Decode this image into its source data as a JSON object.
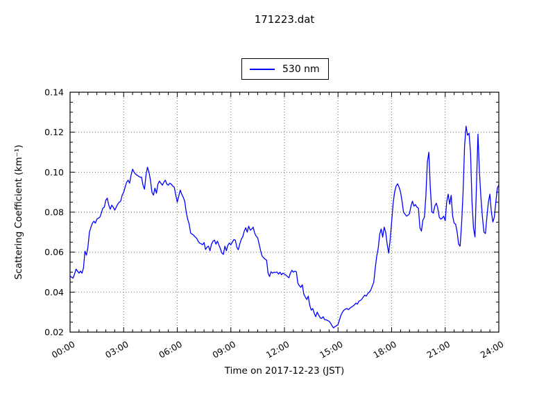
{
  "figure": {
    "title": "171223.dat",
    "legend": {
      "label": "530 nm",
      "line_color": "#0000ff"
    },
    "x_axis": {
      "label": "Time on 2017-12-23 (JST)",
      "ticks": [
        {
          "hour": 0,
          "label": "00:00"
        },
        {
          "hour": 3,
          "label": "03:00"
        },
        {
          "hour": 6,
          "label": "06:00"
        },
        {
          "hour": 9,
          "label": "09:00"
        },
        {
          "hour": 12,
          "label": "12:00"
        },
        {
          "hour": 15,
          "label": "15:00"
        },
        {
          "hour": 18,
          "label": "18:00"
        },
        {
          "hour": 21,
          "label": "21:00"
        },
        {
          "hour": 24,
          "label": "24:00"
        }
      ],
      "minor_step_hours": 0.5,
      "tick_label_rotation_deg": -30
    },
    "y_axis": {
      "label": "Scattering Coefficient (km⁻¹)",
      "ticks": [
        {
          "value": 0.02,
          "label": "0.02"
        },
        {
          "value": 0.04,
          "label": "0.04"
        },
        {
          "value": 0.06,
          "label": "0.06"
        },
        {
          "value": 0.08,
          "label": "0.08"
        },
        {
          "value": 0.1,
          "label": "0.10"
        },
        {
          "value": 0.12,
          "label": "0.12"
        },
        {
          "value": 0.14,
          "label": "0.14"
        }
      ],
      "minor_step": 0.005
    },
    "colors": {
      "line": "#0000ff",
      "grid": "#555555",
      "frame": "#000000",
      "background": "#ffffff"
    }
  },
  "chart_data": {
    "type": "line",
    "title": "171223.dat",
    "xlabel": "Time on 2017-12-23 (JST)",
    "ylabel": "Scattering Coefficient (km⁻¹)",
    "xlim": [
      0,
      24
    ],
    "ylim": [
      0.02,
      0.14
    ],
    "grid": true,
    "grid_style": "dotted",
    "legend_position": "upper center, above axes",
    "series": [
      {
        "name": "530 nm",
        "color": "#0000ff",
        "x_start_hour": 0,
        "x_step_minutes": 5,
        "values": [
          0.048,
          0.0475,
          0.047,
          0.049,
          0.0515,
          0.0505,
          0.0495,
          0.0505,
          0.0495,
          0.052,
          0.0605,
          0.0585,
          0.0625,
          0.07,
          0.0725,
          0.0745,
          0.0755,
          0.0745,
          0.0765,
          0.077,
          0.0775,
          0.0795,
          0.082,
          0.0825,
          0.086,
          0.087,
          0.0835,
          0.0815,
          0.0835,
          0.0825,
          0.081,
          0.0825,
          0.084,
          0.085,
          0.0855,
          0.0885,
          0.09,
          0.0925,
          0.095,
          0.096,
          0.0945,
          0.0985,
          0.1015,
          0.1,
          0.099,
          0.0985,
          0.098,
          0.0975,
          0.0975,
          0.0935,
          0.0915,
          0.0985,
          0.1025,
          0.1,
          0.096,
          0.09,
          0.0885,
          0.092,
          0.0895,
          0.094,
          0.0955,
          0.0945,
          0.0935,
          0.095,
          0.096,
          0.094,
          0.0935,
          0.0945,
          0.094,
          0.093,
          0.0925,
          0.0885,
          0.085,
          0.088,
          0.091,
          0.089,
          0.0875,
          0.0855,
          0.08,
          0.0765,
          0.074,
          0.0695,
          0.069,
          0.0685,
          0.0676,
          0.067,
          0.0655,
          0.0645,
          0.0642,
          0.0637,
          0.0648,
          0.0613,
          0.0625,
          0.063,
          0.0607,
          0.064,
          0.0655,
          0.066,
          0.064,
          0.0655,
          0.0635,
          0.0617,
          0.0595,
          0.0589,
          0.063,
          0.0607,
          0.0635,
          0.0645,
          0.0637,
          0.065,
          0.0663,
          0.066,
          0.0625,
          0.0612,
          0.064,
          0.0665,
          0.0677,
          0.0705,
          0.0722,
          0.07,
          0.073,
          0.071,
          0.0715,
          0.0725,
          0.0695,
          0.068,
          0.0672,
          0.064,
          0.0607,
          0.058,
          0.0572,
          0.0565,
          0.056,
          0.0495,
          0.0478,
          0.0502,
          0.0495,
          0.05,
          0.0498,
          0.0501,
          0.049,
          0.05,
          0.0487,
          0.0495,
          0.049,
          0.0485,
          0.0478,
          0.0472,
          0.0495,
          0.0509,
          0.05,
          0.0505,
          0.0502,
          0.0445,
          0.0432,
          0.0424,
          0.0437,
          0.039,
          0.0376,
          0.0363,
          0.038,
          0.0334,
          0.031,
          0.0318,
          0.0295,
          0.0277,
          0.03,
          0.0285,
          0.0272,
          0.0268,
          0.0277,
          0.0262,
          0.0262,
          0.0258,
          0.0254,
          0.0245,
          0.0231,
          0.0221,
          0.0228,
          0.0232,
          0.0238,
          0.0262,
          0.0285,
          0.03,
          0.031,
          0.0315,
          0.0318,
          0.0312,
          0.032,
          0.0325,
          0.033,
          0.0336,
          0.0345,
          0.034,
          0.0355,
          0.0358,
          0.0365,
          0.0376,
          0.0385,
          0.038,
          0.0393,
          0.04,
          0.041,
          0.043,
          0.045,
          0.052,
          0.058,
          0.062,
          0.069,
          0.0716,
          0.0675,
          0.0725,
          0.07,
          0.064,
          0.0595,
          0.066,
          0.075,
          0.0843,
          0.09,
          0.093,
          0.0942,
          0.0925,
          0.09,
          0.0855,
          0.08,
          0.079,
          0.078,
          0.0785,
          0.0792,
          0.083,
          0.0855,
          0.083,
          0.0838,
          0.0825,
          0.082,
          0.0722,
          0.0705,
          0.076,
          0.0774,
          0.088,
          0.105,
          0.11,
          0.092,
          0.0803,
          0.0795,
          0.083,
          0.0845,
          0.082,
          0.0775,
          0.0765,
          0.077,
          0.078,
          0.0757,
          0.0851,
          0.089,
          0.084,
          0.0884,
          0.078,
          0.0745,
          0.074,
          0.07,
          0.064,
          0.063,
          0.074,
          0.09,
          0.113,
          0.123,
          0.1185,
          0.1195,
          0.11,
          0.085,
          0.072,
          0.0676,
          0.0936,
          0.119,
          0.1,
          0.0872,
          0.0775,
          0.07,
          0.0693,
          0.0775,
          0.085,
          0.089,
          0.08,
          0.0751,
          0.0775,
          0.085,
          0.092,
          0.0936
        ]
      }
    ]
  }
}
